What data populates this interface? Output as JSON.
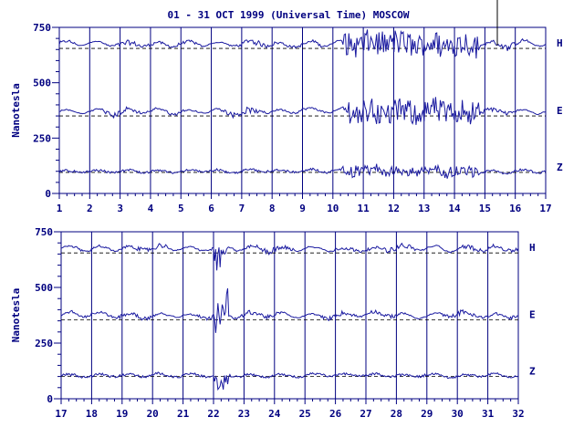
{
  "title": "01 - 31 OCT 1999 (Universal Time) MOSCOW",
  "colors": {
    "axis": "#000080",
    "trace": "#1a1aa0",
    "baseline": "#000000",
    "background": "#ffffff"
  },
  "chart_data": [
    {
      "type": "line",
      "ylabel": "Nanotesla",
      "ylim": [
        0,
        750
      ],
      "yticks": [
        "0",
        "250",
        "500",
        "750"
      ],
      "xlim": [
        1,
        17
      ],
      "xticks": [
        "1",
        "2",
        "3",
        "4",
        "5",
        "6",
        "7",
        "8",
        "9",
        "10",
        "11",
        "12",
        "13",
        "14",
        "15",
        "16",
        "17"
      ],
      "grid": "vertical lines at each day",
      "series": [
        {
          "name": "H",
          "baseline": 655,
          "typical_range": [
            590,
            740
          ]
        },
        {
          "name": "E",
          "baseline": 350,
          "typical_range": [
            280,
            450
          ]
        },
        {
          "name": "Z",
          "baseline": 95,
          "typical_range": [
            40,
            230
          ]
        }
      ]
    },
    {
      "type": "line",
      "ylabel": "Nanotesla",
      "ylim": [
        0,
        750
      ],
      "yticks": [
        "0",
        "250",
        "500",
        "750"
      ],
      "xlim": [
        17,
        32
      ],
      "xticks": [
        "17",
        "18",
        "19",
        "20",
        "21",
        "22",
        "23",
        "24",
        "25",
        "26",
        "27",
        "28",
        "29",
        "30",
        "31",
        "32"
      ],
      "grid": "vertical lines at each day",
      "series": [
        {
          "name": "H",
          "baseline": 655,
          "typical_range": [
            420,
            730
          ]
        },
        {
          "name": "E",
          "baseline": 355,
          "typical_range": [
            260,
            560
          ]
        },
        {
          "name": "Z",
          "baseline": 100,
          "typical_range": [
            0,
            180
          ]
        }
      ]
    }
  ]
}
